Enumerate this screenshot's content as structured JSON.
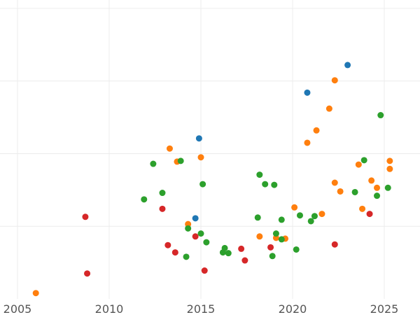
{
  "chart_data": {
    "type": "scatter",
    "title": "",
    "xlabel": "",
    "ylabel": "",
    "xlim": [
      2005.5,
      2027
    ],
    "x_ticks": [
      2005,
      2010,
      2015,
      2020,
      2025
    ],
    "x_tick_labels": [
      "2005",
      "2010",
      "2015",
      "2020",
      "2025"
    ],
    "ylim": [
      0,
      4
    ],
    "y_grid": [
      1,
      2,
      3,
      4
    ],
    "grid": true,
    "legend": "none",
    "series": [
      {
        "color": "#1f77b4",
        "points": [
          [
            2023.0,
            3.22
          ],
          [
            2020.8,
            2.84
          ],
          [
            2014.9,
            2.21
          ],
          [
            2014.7,
            1.11
          ]
        ]
      },
      {
        "color": "#ff7f0e",
        "points": [
          [
            2006.0,
            0.08
          ],
          [
            2013.3,
            2.07
          ],
          [
            2013.7,
            1.89
          ],
          [
            2015.0,
            1.95
          ],
          [
            2014.3,
            1.03
          ],
          [
            2018.2,
            0.86
          ],
          [
            2019.1,
            0.84
          ],
          [
            2019.6,
            0.83
          ],
          [
            2020.1,
            1.26
          ],
          [
            2020.8,
            2.15
          ],
          [
            2021.3,
            2.32
          ],
          [
            2021.6,
            1.17
          ],
          [
            2022.0,
            2.62
          ],
          [
            2022.3,
            3.01
          ],
          [
            2022.3,
            1.6
          ],
          [
            2022.6,
            1.48
          ],
          [
            2023.6,
            1.85
          ],
          [
            2023.8,
            1.24
          ],
          [
            2024.3,
            1.63
          ],
          [
            2024.6,
            1.53
          ],
          [
            2025.3,
            1.9
          ],
          [
            2025.3,
            1.79
          ]
        ]
      },
      {
        "color": "#2ca02c",
        "points": [
          [
            2011.9,
            1.37
          ],
          [
            2012.4,
            1.86
          ],
          [
            2012.9,
            1.46
          ],
          [
            2013.9,
            1.9
          ],
          [
            2014.2,
            0.58
          ],
          [
            2014.3,
            0.97
          ],
          [
            2015.0,
            0.9
          ],
          [
            2015.1,
            1.58
          ],
          [
            2015.3,
            0.78
          ],
          [
            2016.2,
            0.64
          ],
          [
            2016.3,
            0.7
          ],
          [
            2016.5,
            0.63
          ],
          [
            2018.1,
            1.12
          ],
          [
            2018.2,
            1.71
          ],
          [
            2018.5,
            1.58
          ],
          [
            2018.9,
            0.59
          ],
          [
            2019.0,
            1.57
          ],
          [
            2019.1,
            0.9
          ],
          [
            2019.4,
            0.82
          ],
          [
            2019.4,
            1.09
          ],
          [
            2020.2,
            0.68
          ],
          [
            2020.4,
            1.15
          ],
          [
            2021.0,
            1.07
          ],
          [
            2021.2,
            1.14
          ],
          [
            2023.4,
            1.47
          ],
          [
            2023.9,
            1.91
          ],
          [
            2024.6,
            1.42
          ],
          [
            2024.8,
            2.53
          ],
          [
            2025.2,
            1.53
          ]
        ]
      },
      {
        "color": "#d62728",
        "points": [
          [
            2008.7,
            1.13
          ],
          [
            2008.8,
            0.35
          ],
          [
            2012.9,
            1.24
          ],
          [
            2013.2,
            0.74
          ],
          [
            2013.6,
            0.64
          ],
          [
            2014.7,
            0.86
          ],
          [
            2015.2,
            0.39
          ],
          [
            2017.2,
            0.69
          ],
          [
            2017.4,
            0.53
          ],
          [
            2018.8,
            0.71
          ],
          [
            2022.3,
            0.75
          ],
          [
            2024.2,
            1.17
          ]
        ]
      }
    ]
  }
}
